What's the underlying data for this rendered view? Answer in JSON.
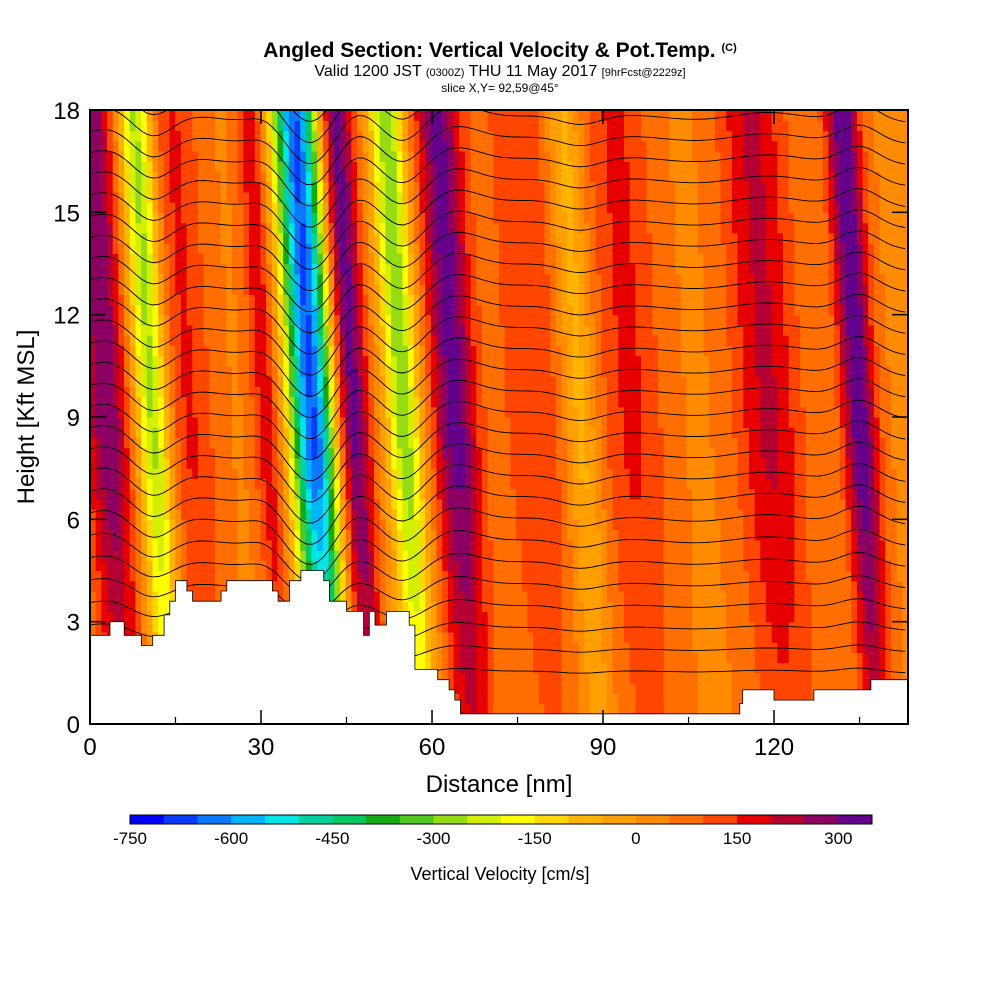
{
  "title": {
    "main": "Angled Section: Vertical Velocity & Pot.Temp.",
    "units_tag": "(C)",
    "valid_a": "Valid 1200 JST",
    "valid_utc": "(0300Z)",
    "valid_b": "THU 11 May 2017",
    "forecast": "[9hrFcst@2229z]",
    "slice": "slice X,Y= 92,59@45°"
  },
  "chart_data": {
    "type": "heatmap",
    "xlabel": "Distance [nm]",
    "ylabel": "Height [Kft MSL]",
    "xlim": [
      0,
      143.5
    ],
    "ylim": [
      0,
      18
    ],
    "x_ticks": [
      "0",
      "30",
      "60",
      "90",
      "120"
    ],
    "y_ticks": [
      "0",
      "3",
      "6",
      "9",
      "12",
      "15",
      "18"
    ],
    "colorbar": {
      "label": "Vertical Velocity [cm/s]",
      "ticks": [
        "-750",
        "-600",
        "-450",
        "-300",
        "-150",
        "0",
        "150",
        "300"
      ],
      "levels": [
        -750,
        -700,
        -650,
        -600,
        -550,
        -500,
        -450,
        -400,
        -350,
        -300,
        -250,
        -200,
        -150,
        -100,
        -50,
        0,
        50,
        100,
        150,
        200,
        250,
        300,
        350
      ],
      "colors": [
        "#0000ff",
        "#0a3cff",
        "#0a78ff",
        "#00b4ff",
        "#00e6e6",
        "#00d2a0",
        "#00c864",
        "#14aa14",
        "#50c81e",
        "#96dc14",
        "#d2f000",
        "#ffff00",
        "#ffd700",
        "#ffb400",
        "#ffa000",
        "#ff8c00",
        "#ff6e00",
        "#ff4600",
        "#e60000",
        "#b40032",
        "#8c0064",
        "#64008c"
      ]
    },
    "velocity_bands_cm_s": [
      {
        "x": 3,
        "w": 4,
        "value": 250
      },
      {
        "x": 11,
        "w": 3,
        "value": -330
      },
      {
        "x": 17,
        "w": 5,
        "value": 120
      },
      {
        "x": 31,
        "w": 2.5,
        "value": 150
      },
      {
        "x": 39,
        "w": 4,
        "value": -700
      },
      {
        "x": 46,
        "w": 3,
        "value": 300
      },
      {
        "x": 55,
        "w": 3,
        "value": -330
      },
      {
        "x": 64,
        "w": 4,
        "value": 280
      },
      {
        "x": 78,
        "w": 6,
        "value": 110
      },
      {
        "x": 86,
        "w": 3,
        "value": -130
      },
      {
        "x": 95,
        "w": 6,
        "value": 120
      },
      {
        "x": 119,
        "w": 6,
        "value": 170
      },
      {
        "x": 135,
        "w": 3,
        "value": 300
      }
    ],
    "terrain_kft": [
      [
        0,
        2.6
      ],
      [
        3.5,
        2.6
      ],
      [
        3.5,
        3.0
      ],
      [
        6,
        3.0
      ],
      [
        6,
        2.6
      ],
      [
        9,
        2.6
      ],
      [
        9,
        2.3
      ],
      [
        11,
        2.3
      ],
      [
        11,
        2.6
      ],
      [
        13,
        2.6
      ],
      [
        13,
        3.2
      ],
      [
        14,
        3.2
      ],
      [
        14,
        3.6
      ],
      [
        15,
        3.6
      ],
      [
        15,
        4.2
      ],
      [
        17,
        4.2
      ],
      [
        17,
        3.9
      ],
      [
        18,
        3.9
      ],
      [
        18,
        3.6
      ],
      [
        23,
        3.6
      ],
      [
        23,
        3.9
      ],
      [
        24,
        3.9
      ],
      [
        24,
        4.2
      ],
      [
        32,
        4.2
      ],
      [
        32,
        3.9
      ],
      [
        33,
        3.9
      ],
      [
        33,
        3.6
      ],
      [
        35,
        3.6
      ],
      [
        35,
        4.2
      ],
      [
        37,
        4.2
      ],
      [
        37,
        4.5
      ],
      [
        41,
        4.5
      ],
      [
        41,
        4.2
      ],
      [
        42,
        4.2
      ],
      [
        42,
        3.6
      ],
      [
        45,
        3.6
      ],
      [
        45,
        3.3
      ],
      [
        48,
        3.3
      ],
      [
        48,
        2.6
      ],
      [
        49,
        2.6
      ],
      [
        49,
        3.3
      ],
      [
        50,
        3.3
      ],
      [
        50,
        2.9
      ],
      [
        52,
        2.9
      ],
      [
        52,
        3.3
      ],
      [
        56,
        3.3
      ],
      [
        56,
        2.9
      ],
      [
        57,
        2.9
      ],
      [
        57,
        1.6
      ],
      [
        61,
        1.6
      ],
      [
        61,
        1.3
      ],
      [
        63,
        1.3
      ],
      [
        63,
        1.0
      ],
      [
        64,
        1.0
      ],
      [
        64,
        0.7
      ],
      [
        65,
        0.7
      ],
      [
        65,
        0.3
      ],
      [
        114,
        0.3
      ],
      [
        114,
        0.6
      ],
      [
        114.5,
        0.6
      ],
      [
        114.5,
        1.0
      ],
      [
        120,
        1.0
      ],
      [
        120,
        0.7
      ],
      [
        127,
        0.7
      ],
      [
        127,
        1.0
      ],
      [
        137,
        1.0
      ],
      [
        137,
        1.3
      ],
      [
        143.5,
        1.3
      ]
    ]
  }
}
